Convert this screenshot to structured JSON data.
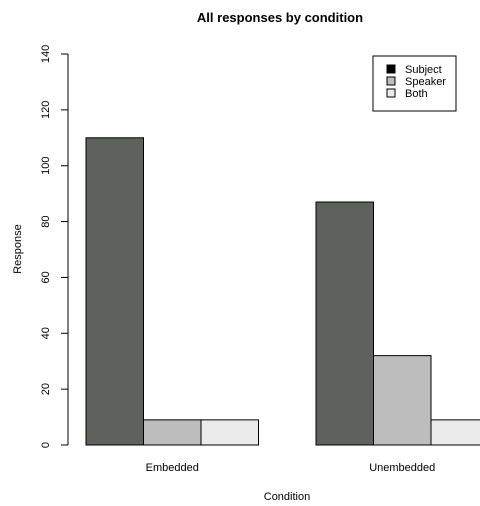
{
  "chart_data": {
    "type": "bar",
    "title": "All responses by condition",
    "xlabel": "Condition",
    "ylabel": "Response",
    "categories": [
      "Embedded",
      "Unembedded"
    ],
    "series": [
      {
        "name": "Subject",
        "color": "#5f615f",
        "values": [
          110,
          87
        ]
      },
      {
        "name": "Speaker",
        "color": "#bdbdbd",
        "values": [
          9,
          32
        ]
      },
      {
        "name": "Both",
        "color": "#ebebeb",
        "values": [
          9,
          9
        ]
      }
    ],
    "ylim": [
      0,
      140
    ],
    "yticks": [
      "0",
      "20",
      "40",
      "60",
      "80",
      "100",
      "120",
      "140"
    ],
    "grid": false,
    "legend_position": "top-right"
  }
}
